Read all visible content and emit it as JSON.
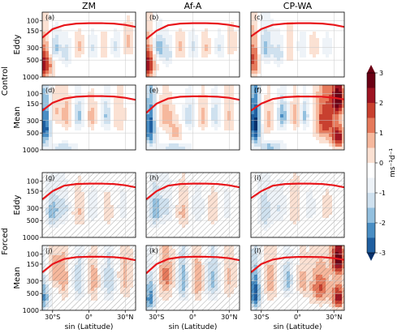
{
  "chart_data": {
    "type": "heatmap",
    "column_titles": [
      "ZM",
      "Af-A",
      "CP-WA"
    ],
    "row_groups": [
      "Control",
      "Forced"
    ],
    "row_labels": [
      "Eddy",
      "Mean",
      "Eddy",
      "Mean"
    ],
    "panel_letters": [
      "(a)",
      "(b)",
      "(c)",
      "(d)",
      "(e)",
      "(f)",
      "(g)",
      "(h)",
      "(i)",
      "(j)",
      "(k)",
      "(l)"
    ],
    "x_ticks": [
      "30°S",
      "0°",
      "30°N"
    ],
    "x_tick_values": [
      -30,
      0,
      30
    ],
    "xlim": [
      -40,
      40
    ],
    "xlabel": "sin (Latitude)",
    "y_ticks": [
      "100",
      "150",
      "300",
      "500",
      "1000"
    ],
    "y_tick_values": [
      100,
      150,
      300,
      500,
      1000
    ],
    "ylim": [
      1000,
      70
    ],
    "y_scale": "log",
    "colorbar": {
      "ticks": [
        "3",
        "2",
        "1",
        "0",
        "-1",
        "-2",
        "-3"
      ],
      "values": [
        3,
        2,
        1,
        0,
        -1,
        -2,
        -3
      ],
      "label": "ms⁻¹d⁻¹",
      "range": [
        -3,
        3
      ],
      "colors": [
        "#08306b",
        "#1f5fa0",
        "#4a8ec4",
        "#93c0df",
        "#cfe1ef",
        "#eef3f8",
        "#ffffff",
        "#fbe1d3",
        "#f6b89d",
        "#e67a5c",
        "#c8402f",
        "#9e1422",
        "#6b0014"
      ]
    },
    "tropopause_color": "#e8161b",
    "tropopause_pressure_hPa": [
      [
        200,
        140,
        120,
        112,
        110,
        110,
        112,
        118,
        128
      ],
      [
        210,
        150,
        120,
        112,
        110,
        110,
        112,
        118,
        128
      ],
      [
        190,
        140,
        118,
        112,
        110,
        110,
        112,
        118,
        128
      ],
      [
        200,
        145,
        122,
        113,
        110,
        110,
        112,
        118,
        128
      ],
      [
        220,
        150,
        122,
        113,
        111,
        111,
        113,
        118,
        128
      ],
      [
        200,
        150,
        124,
        115,
        112,
        112,
        113,
        118,
        126
      ],
      [
        210,
        150,
        120,
        112,
        110,
        110,
        112,
        118,
        128
      ],
      [
        210,
        150,
        120,
        112,
        110,
        110,
        112,
        118,
        128
      ],
      [
        200,
        150,
        120,
        112,
        110,
        110,
        112,
        118,
        128
      ],
      [
        210,
        150,
        122,
        113,
        111,
        111,
        113,
        118,
        128
      ],
      [
        220,
        150,
        122,
        113,
        111,
        111,
        113,
        118,
        128
      ],
      [
        210,
        150,
        125,
        115,
        112,
        112,
        113,
        118,
        126
      ]
    ],
    "tropopause_lat_nodes": [
      -40,
      -30,
      -20,
      -10,
      0,
      10,
      20,
      30,
      40
    ],
    "panels": [
      {
        "letter": "(a)",
        "blobs": [
          [
            -38,
            600,
            7,
            400,
            2.6
          ],
          [
            -28,
            300,
            5,
            150,
            -1.6
          ],
          [
            -18,
            400,
            4,
            200,
            -1.2
          ],
          [
            -8,
            300,
            4,
            150,
            0.9
          ],
          [
            3,
            300,
            4,
            150,
            -0.8
          ],
          [
            12,
            300,
            4,
            150,
            0.7
          ],
          [
            22,
            300,
            4,
            150,
            -0.9
          ],
          [
            33,
            250,
            5,
            150,
            0.9
          ]
        ],
        "hatched": false
      },
      {
        "letter": "(b)",
        "blobs": [
          [
            -38,
            600,
            6,
            400,
            2.6
          ],
          [
            -28,
            300,
            5,
            150,
            -1.8
          ],
          [
            -20,
            400,
            4,
            200,
            -1.0
          ],
          [
            -10,
            300,
            4,
            150,
            0.9
          ],
          [
            0,
            300,
            4,
            150,
            -0.9
          ],
          [
            10,
            300,
            4,
            150,
            0.8
          ],
          [
            22,
            300,
            4,
            150,
            -0.8
          ],
          [
            32,
            250,
            5,
            150,
            0.7
          ]
        ],
        "hatched": false
      },
      {
        "letter": "(c)",
        "blobs": [
          [
            -37,
            500,
            5,
            400,
            2.0
          ],
          [
            -26,
            300,
            6,
            200,
            -1.5
          ],
          [
            -15,
            400,
            4,
            200,
            -1.2
          ],
          [
            -6,
            300,
            3,
            200,
            0.8
          ],
          [
            4,
            300,
            4,
            150,
            -0.7
          ],
          [
            13,
            300,
            4,
            150,
            0.7
          ],
          [
            24,
            300,
            4,
            150,
            -0.6
          ]
        ],
        "hatched": false
      },
      {
        "letter": "(d)",
        "blobs": [
          [
            -37,
            400,
            5,
            400,
            -2.6
          ],
          [
            -27,
            200,
            5,
            150,
            0.8
          ],
          [
            -18,
            250,
            4,
            150,
            1.2
          ],
          [
            -8,
            250,
            4,
            150,
            -1.4
          ],
          [
            2,
            250,
            4,
            150,
            1.0
          ],
          [
            14,
            250,
            4,
            150,
            -1.3
          ],
          [
            25,
            250,
            5,
            200,
            0.7
          ],
          [
            -20,
            900,
            10,
            150,
            -1.2
          ]
        ],
        "hatched": false
      },
      {
        "letter": "(e)",
        "blobs": [
          [
            -36,
            400,
            5,
            400,
            -2.6
          ],
          [
            -22,
            250,
            6,
            150,
            1.2
          ],
          [
            -14,
            500,
            5,
            200,
            1.0
          ],
          [
            -3,
            250,
            4,
            150,
            -1.2
          ],
          [
            8,
            250,
            4,
            150,
            1.0
          ],
          [
            18,
            250,
            4,
            150,
            -1.2
          ],
          [
            30,
            250,
            5,
            200,
            0.8
          ],
          [
            -15,
            900,
            12,
            150,
            -1.2
          ]
        ],
        "hatched": false
      },
      {
        "letter": "(f)",
        "blobs": [
          [
            -36,
            350,
            5,
            400,
            -3.0
          ],
          [
            -24,
            300,
            4,
            200,
            1.0
          ],
          [
            -12,
            250,
            4,
            150,
            -1.8
          ],
          [
            -2,
            250,
            3,
            150,
            1.2
          ],
          [
            6,
            250,
            3,
            150,
            -1.4
          ],
          [
            22,
            300,
            8,
            300,
            2.2
          ],
          [
            34,
            120,
            6,
            100,
            3.0
          ],
          [
            34,
            600,
            6,
            300,
            2.6
          ],
          [
            -22,
            900,
            10,
            200,
            -1.5
          ]
        ],
        "hatched": false
      },
      {
        "letter": "(g)",
        "blobs": [
          [
            -30,
            350,
            6,
            250,
            -1.6
          ],
          [
            -20,
            300,
            5,
            200,
            -0.9
          ],
          [
            -8,
            350,
            5,
            250,
            0.8
          ],
          [
            3,
            300,
            5,
            200,
            -0.6
          ],
          [
            15,
            350,
            5,
            250,
            0.5
          ],
          [
            28,
            300,
            5,
            200,
            -0.5
          ]
        ],
        "hatched": true
      },
      {
        "letter": "(h)",
        "blobs": [
          [
            -31,
            330,
            6,
            250,
            -1.7
          ],
          [
            -20,
            300,
            5,
            200,
            -0.9
          ],
          [
            -8,
            350,
            5,
            250,
            0.9
          ],
          [
            4,
            300,
            5,
            200,
            -0.7
          ],
          [
            16,
            350,
            5,
            250,
            0.6
          ],
          [
            28,
            300,
            5,
            200,
            -0.5
          ]
        ],
        "hatched": true
      },
      {
        "letter": "(i)",
        "blobs": [
          [
            -27,
            350,
            6,
            300,
            -1.2
          ],
          [
            -14,
            300,
            5,
            200,
            -0.8
          ],
          [
            -2,
            300,
            5,
            250,
            0.7
          ],
          [
            10,
            300,
            5,
            200,
            -0.5
          ],
          [
            24,
            300,
            5,
            200,
            0.5
          ]
        ],
        "hatched": true
      },
      {
        "letter": "(j)",
        "blobs": [
          [
            -38,
            600,
            5,
            400,
            -1.8
          ],
          [
            -28,
            200,
            6,
            150,
            1.2
          ],
          [
            -20,
            300,
            4,
            300,
            1.0
          ],
          [
            -8,
            300,
            4,
            300,
            -1.2
          ],
          [
            4,
            300,
            4,
            300,
            1.0
          ],
          [
            16,
            300,
            5,
            300,
            -1.2
          ],
          [
            30,
            250,
            6,
            300,
            0.9
          ]
        ],
        "hatched": true
      },
      {
        "letter": "(k)",
        "blobs": [
          [
            -36,
            600,
            5,
            400,
            -2.2
          ],
          [
            -22,
            250,
            6,
            300,
            1.4
          ],
          [
            -8,
            300,
            4,
            300,
            -1.6
          ],
          [
            4,
            300,
            4,
            300,
            1.2
          ],
          [
            16,
            300,
            5,
            300,
            -1.4
          ],
          [
            30,
            250,
            6,
            300,
            0.8
          ]
        ],
        "hatched": true
      },
      {
        "letter": "(l)",
        "blobs": [
          [
            -36,
            500,
            5,
            400,
            -2.8
          ],
          [
            -22,
            300,
            5,
            300,
            1.0
          ],
          [
            -8,
            300,
            4,
            200,
            -1.6
          ],
          [
            4,
            300,
            4,
            200,
            1.0
          ],
          [
            18,
            400,
            8,
            300,
            1.8
          ],
          [
            34,
            120,
            6,
            100,
            3.0
          ],
          [
            34,
            600,
            6,
            300,
            2.6
          ]
        ],
        "hatched": true
      }
    ]
  }
}
